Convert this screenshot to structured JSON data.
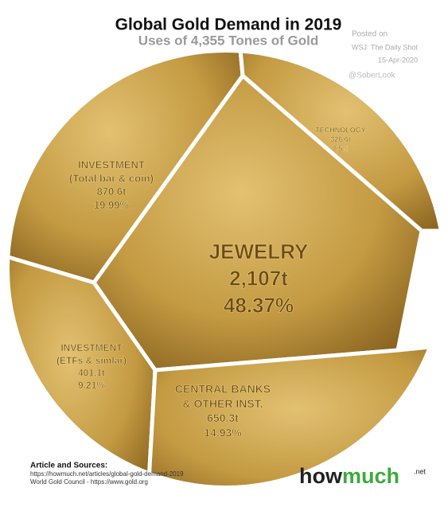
{
  "chart_data": {
    "type": "voronoi",
    "title": "Global Gold Demand in 2019",
    "subtitle": "Uses of 4,355 Tones of Gold",
    "categories": [
      [
        "JEWELRY"
      ],
      [
        "INVESTMENT",
        "(Total bar & coin)"
      ],
      [
        "TECHNOLOGY"
      ],
      [
        "INVESTMENT",
        "(ETFs & simlar)"
      ],
      [
        "CENTRAL BANKS",
        "& OTHER INST."
      ]
    ],
    "values": [
      2107,
      870.6,
      326.6,
      401.1,
      650.3
    ],
    "value_labels": [
      "2,107t",
      "870.6t",
      "326.6t",
      "401.1t",
      "650.3t"
    ],
    "shares": [
      48.37,
      19.99,
      7.5,
      9.21,
      14.93
    ],
    "share_labels": [
      "48.37%",
      "19.99%",
      "7.5%",
      "9.21%",
      "14.93%"
    ],
    "color": "#c9a24a",
    "annotations": [
      "Posted on",
      "WSJ: The Daily Shot",
      "15-Apr-2020",
      "@SoberLook"
    ],
    "footer": {
      "heading": "Article and Sources:",
      "lines": [
        "https://howmuch.net/articles/global-gold-demand-2019",
        "World Gold Council - https://www.gold.org"
      ]
    },
    "logo": {
      "left": "how",
      "right": "much",
      "suffix": ".net"
    }
  }
}
